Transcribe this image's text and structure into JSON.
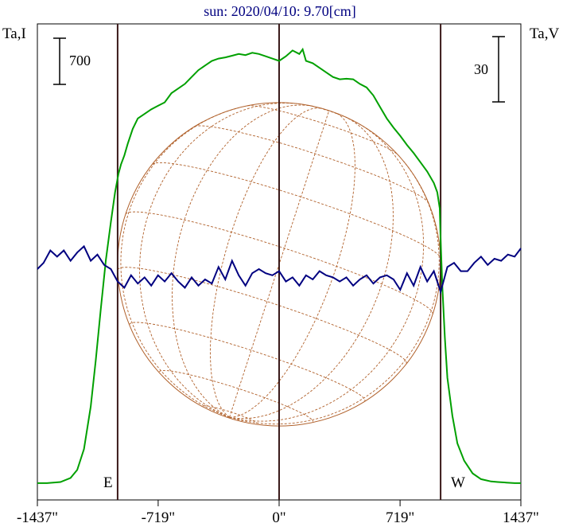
{
  "title": "sun: 2020/04/10: 9.70[cm]",
  "left_axis_label": "Ta,I",
  "right_axis_label": "Ta,V",
  "scale_left": {
    "value": "700"
  },
  "scale_right": {
    "value": "30"
  },
  "marker_east": "E",
  "marker_west": "W",
  "colors": {
    "stokes_i": "#00a000",
    "stokes_v": "#000080",
    "solar_disk": "#b0602a",
    "limb_lines": "#3a1a1a",
    "frame": "#000000",
    "title": "#000080"
  },
  "chart_data": [
    {
      "type": "line",
      "title": "sun: 2020/04/10: 9.70[cm]",
      "xlabel": "",
      "ylabel": "Ta,I",
      "xlim": [
        -1437,
        1437
      ],
      "x_ticks": [
        -1437,
        -719,
        0,
        719,
        1437
      ],
      "x_tick_labels": [
        "-1437\"",
        "-719\"",
        "0\"",
        "719\"",
        "1437\""
      ],
      "limb_markers": [
        -960,
        960
      ],
      "grid": false,
      "series": [
        {
          "name": "Ta,I",
          "x": [
            -1437,
            -1380,
            -1300,
            -1240,
            -1200,
            -1160,
            -1120,
            -1090,
            -1060,
            -1030,
            -1000,
            -975,
            -955,
            -940,
            -920,
            -900,
            -870,
            -840,
            -800,
            -760,
            -720,
            -680,
            -640,
            -600,
            -560,
            -520,
            -480,
            -440,
            -400,
            -360,
            -320,
            -280,
            -240,
            -200,
            -160,
            -120,
            -80,
            -40,
            0,
            40,
            80,
            120,
            140,
            160,
            200,
            240,
            280,
            320,
            360,
            400,
            440,
            480,
            520,
            560,
            600,
            640,
            680,
            720,
            760,
            800,
            840,
            880,
            920,
            940,
            955,
            960,
            970,
            985,
            1000,
            1030,
            1060,
            1100,
            1150,
            1200,
            1260,
            1300,
            1350,
            1400,
            1437
          ],
          "values": [
            35,
            35,
            45,
            80,
            150,
            330,
            700,
            1100,
            1550,
            1970,
            2300,
            2560,
            2720,
            2800,
            2880,
            2980,
            3110,
            3200,
            3240,
            3280,
            3310,
            3340,
            3420,
            3460,
            3500,
            3560,
            3620,
            3660,
            3700,
            3720,
            3730,
            3745,
            3760,
            3750,
            3770,
            3760,
            3740,
            3720,
            3700,
            3740,
            3790,
            3760,
            3800,
            3700,
            3680,
            3640,
            3600,
            3560,
            3540,
            3545,
            3540,
            3500,
            3470,
            3400,
            3300,
            3200,
            3120,
            3050,
            2970,
            2900,
            2820,
            2740,
            2640,
            2560,
            2420,
            2150,
            1750,
            1300,
            950,
            620,
            380,
            230,
            120,
            70,
            50,
            45,
            40,
            35,
            35
          ]
        },
        {
          "name": "Ta,V",
          "x": [
            -1437,
            -1400,
            -1360,
            -1320,
            -1280,
            -1240,
            -1200,
            -1160,
            -1120,
            -1080,
            -1040,
            -1000,
            -960,
            -920,
            -880,
            -840,
            -800,
            -760,
            -720,
            -680,
            -640,
            -600,
            -560,
            -520,
            -480,
            -440,
            -400,
            -360,
            -320,
            -280,
            -240,
            -200,
            -160,
            -120,
            -80,
            -40,
            0,
            40,
            80,
            120,
            160,
            200,
            240,
            280,
            320,
            360,
            400,
            440,
            480,
            520,
            560,
            600,
            640,
            680,
            720,
            760,
            800,
            840,
            880,
            920,
            960,
            1000,
            1040,
            1080,
            1120,
            1160,
            1200,
            1240,
            1280,
            1320,
            1360,
            1400,
            1437
          ],
          "values": [
            0,
            3,
            9,
            6,
            9,
            4,
            8,
            11,
            4,
            7,
            2,
            0,
            -6,
            -9,
            -3,
            -7,
            -4,
            -8,
            -3,
            -6,
            -2,
            -6,
            -9,
            -4,
            -8,
            -5,
            -7,
            1,
            -5,
            4,
            -3,
            -8,
            -2,
            0,
            -2,
            -3,
            -1,
            -6,
            -4,
            -8,
            -3,
            -5,
            -1,
            -3,
            -4,
            -6,
            -4,
            -8,
            -5,
            -3,
            -7,
            -4,
            -3,
            -5,
            -10,
            -2,
            -8,
            1,
            -6,
            -1,
            -11,
            1,
            3,
            -1,
            -1,
            3,
            6,
            2,
            5,
            4,
            7,
            6,
            10
          ]
        }
      ]
    }
  ]
}
